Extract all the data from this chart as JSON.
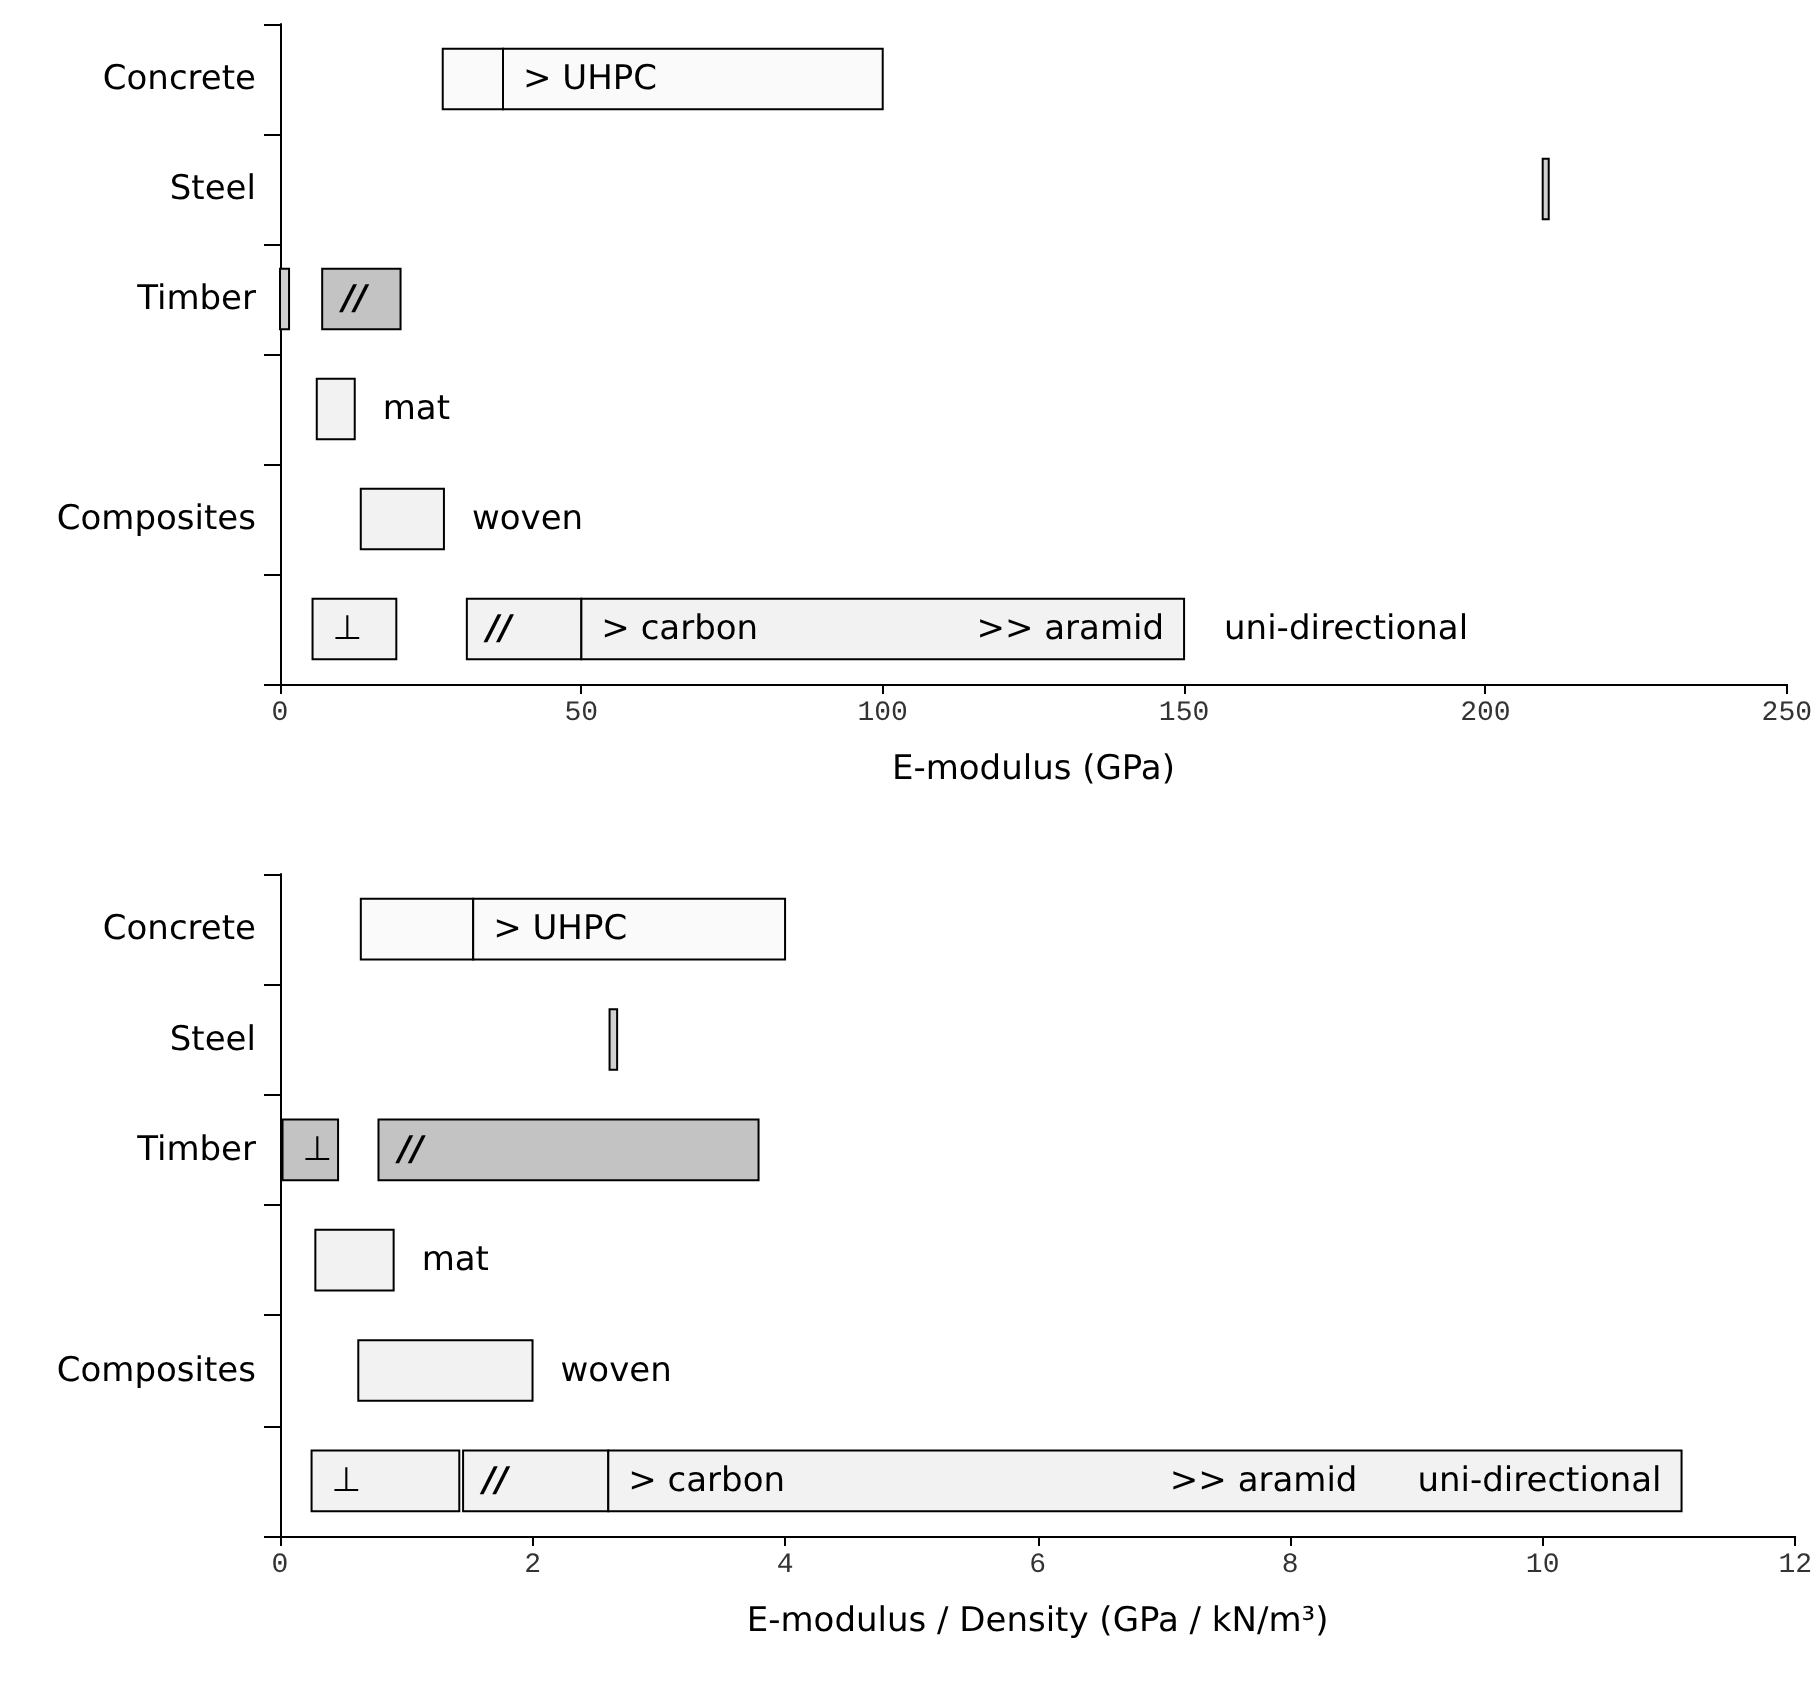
{
  "chart_data": [
    {
      "type": "bar",
      "orientation": "horizontal",
      "xlabel": "E-modulus (GPa)",
      "categories": [
        "Concrete",
        "Steel",
        "Timber",
        null,
        "Composites",
        null
      ],
      "xlim": [
        0,
        250
      ],
      "xticks": [
        0,
        50,
        100,
        150,
        200,
        250
      ],
      "grid": false,
      "legend": false,
      "series": [
        {
          "values": [
            10,
            1,
            1.5,
            null,
            null,
            13.9
          ],
          "base": [
            27,
            209.5,
            0,
            null,
            null,
            5.4
          ],
          "colors": [
            "#fafafa",
            "#d0d0d0",
            "#d0d0d0",
            null,
            null,
            "#f2f2f2"
          ],
          "value_labels": [
            null,
            null,
            null,
            null,
            null,
            "⊥"
          ]
        },
        {
          "values": [
            63,
            null,
            13,
            null,
            null,
            19
          ],
          "base": [
            37,
            null,
            7,
            null,
            null,
            31
          ],
          "colors": [
            "#fafafa",
            null,
            "#c3c3c3",
            null,
            null,
            "#f2f2f2"
          ],
          "value_labels": [
            "> UHPC",
            null,
            "//",
            null,
            null,
            "//"
          ]
        },
        {
          "name": "mat",
          "color": "#f2f2f2",
          "values": [
            null,
            null,
            null,
            6.3,
            null,
            null
          ],
          "base": [
            null,
            null,
            null,
            6.1,
            null,
            null
          ]
        },
        {
          "name": "woven",
          "color": "#f2f2f2",
          "values": [
            null,
            null,
            null,
            null,
            13.8,
            null
          ],
          "base": [
            null,
            null,
            null,
            null,
            13.4,
            null
          ]
        },
        {
          "color": "#f2f2f2",
          "values": [
            null,
            null,
            null,
            null,
            null,
            100
          ],
          "base": [
            null,
            null,
            null,
            null,
            null,
            50
          ],
          "value_labels": [
            null,
            null,
            null,
            null,
            null,
            "> carbon"
          ]
        }
      ],
      "annotations": [
        ">> aramid",
        "uni-directional"
      ]
    },
    {
      "type": "bar",
      "orientation": "horizontal",
      "xlabel": "E-modulus / Density (GPa / kN/m³)",
      "categories": [
        "Concrete",
        "Steel",
        "Timber",
        null,
        "Composites",
        null
      ],
      "xlim": [
        0,
        12
      ],
      "xticks": [
        0,
        2,
        4,
        6,
        8,
        10,
        12
      ],
      "grid": false,
      "legend": false,
      "series": [
        {
          "values": [
            0.89,
            0.06,
            0.44,
            null,
            null,
            1.17
          ],
          "base": [
            0.64,
            2.61,
            0.02,
            null,
            null,
            0.25
          ],
          "colors": [
            "#fafafa",
            "#d0d0d0",
            "#c3c3c3",
            null,
            null,
            "#f2f2f2"
          ],
          "value_labels": [
            null,
            null,
            "⊥",
            null,
            null,
            "⊥"
          ]
        },
        {
          "values": [
            2.47,
            null,
            3.01,
            null,
            null,
            1.15
          ],
          "base": [
            1.53,
            null,
            0.78,
            null,
            null,
            1.45
          ],
          "colors": [
            "#fafafa",
            null,
            "#c3c3c3",
            null,
            null,
            "#f2f2f2"
          ],
          "value_labels": [
            "> UHPC",
            null,
            "//",
            null,
            null,
            "//"
          ]
        },
        {
          "name": "mat",
          "color": "#f2f2f2",
          "values": [
            null,
            null,
            null,
            0.62,
            null,
            null
          ],
          "base": [
            null,
            null,
            null,
            0.28,
            null,
            null
          ]
        },
        {
          "name": "woven",
          "color": "#f2f2f2",
          "values": [
            null,
            null,
            null,
            null,
            1.38,
            null
          ],
          "base": [
            null,
            null,
            null,
            null,
            0.62,
            null
          ]
        },
        {
          "color": "#f2f2f2",
          "values": [
            null,
            null,
            null,
            null,
            null,
            8.5
          ],
          "base": [
            null,
            null,
            null,
            null,
            null,
            2.6
          ],
          "value_labels": [
            null,
            null,
            null,
            null,
            null,
            "> carbon"
          ]
        }
      ],
      "annotations": [
        ">> aramid",
        "uni-directional"
      ]
    }
  ]
}
